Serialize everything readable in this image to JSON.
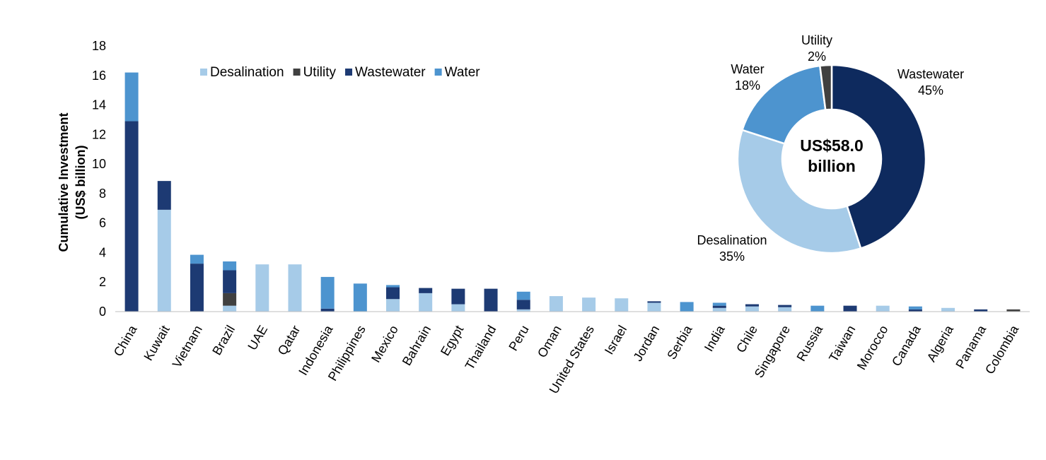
{
  "chart_data": [
    {
      "type": "bar",
      "stacked": true,
      "ylabel": "Cumulative Investment",
      "ylabel_line2": "(US$ billion)",
      "ylim": [
        0,
        18
      ],
      "yticks": [
        0,
        2,
        4,
        6,
        8,
        10,
        12,
        14,
        16,
        18
      ],
      "legend_position": "top-left",
      "categories": [
        "China",
        "Kuwait",
        "Vietnam",
        "Brazil",
        "UAE",
        "Qatar",
        "Indonesia",
        "Philippines",
        "Mexico",
        "Bahrain",
        "Egypt",
        "Thailand",
        "Peru",
        "Oman",
        "United States",
        "Israel",
        "Jordan",
        "Serbia",
        "India",
        "Chile",
        "Singapore",
        "Russia",
        "Taiwan",
        "Morocco",
        "Canada",
        "Algeria",
        "Panama",
        "Colombia"
      ],
      "series": [
        {
          "name": "Desalination",
          "color": "#a6cbe8",
          "values": [
            0,
            6.9,
            0,
            0.4,
            3.2,
            3.2,
            0,
            0,
            0.85,
            1.25,
            0.5,
            0,
            0.15,
            1.05,
            0.95,
            0.9,
            0.6,
            0,
            0.25,
            0.35,
            0.3,
            0,
            0,
            0.4,
            0,
            0.25,
            0,
            0
          ]
        },
        {
          "name": "Utility",
          "color": "#404040",
          "values": [
            0,
            0,
            0,
            0.85,
            0,
            0,
            0,
            0,
            0,
            0,
            0,
            0,
            0,
            0,
            0,
            0,
            0,
            0,
            0,
            0,
            0,
            0,
            0,
            0,
            0,
            0,
            0,
            0.15
          ]
        },
        {
          "name": "Wastewater",
          "color": "#1d3a73",
          "values": [
            12.9,
            1.95,
            3.25,
            1.55,
            0,
            0,
            0.2,
            0,
            0.8,
            0.35,
            1.05,
            1.55,
            0.65,
            0,
            0,
            0,
            0.1,
            0,
            0.15,
            0.15,
            0.15,
            0,
            0.4,
            0,
            0.15,
            0,
            0.15,
            0
          ]
        },
        {
          "name": "Water",
          "color": "#4d94cf",
          "values": [
            3.3,
            0,
            0.6,
            0.6,
            0,
            0,
            2.15,
            1.9,
            0.15,
            0,
            0,
            0,
            0.55,
            0,
            0,
            0,
            0,
            0.65,
            0.2,
            0,
            0,
            0.4,
            0,
            0,
            0.2,
            0,
            0,
            0
          ]
        }
      ]
    },
    {
      "type": "pie",
      "donut": true,
      "center_label_line1": "US$58.0",
      "center_label_line2": "billion",
      "slices": [
        {
          "name": "Wastewater",
          "value": 45,
          "pct_label": "45%",
          "color": "#0e2a5e"
        },
        {
          "name": "Desalination",
          "value": 35,
          "pct_label": "35%",
          "color": "#a6cbe8"
        },
        {
          "name": "Water",
          "value": 18,
          "pct_label": "18%",
          "color": "#4d94cf"
        },
        {
          "name": "Utility",
          "value": 2,
          "pct_label": "2%",
          "color": "#404040"
        }
      ]
    }
  ]
}
